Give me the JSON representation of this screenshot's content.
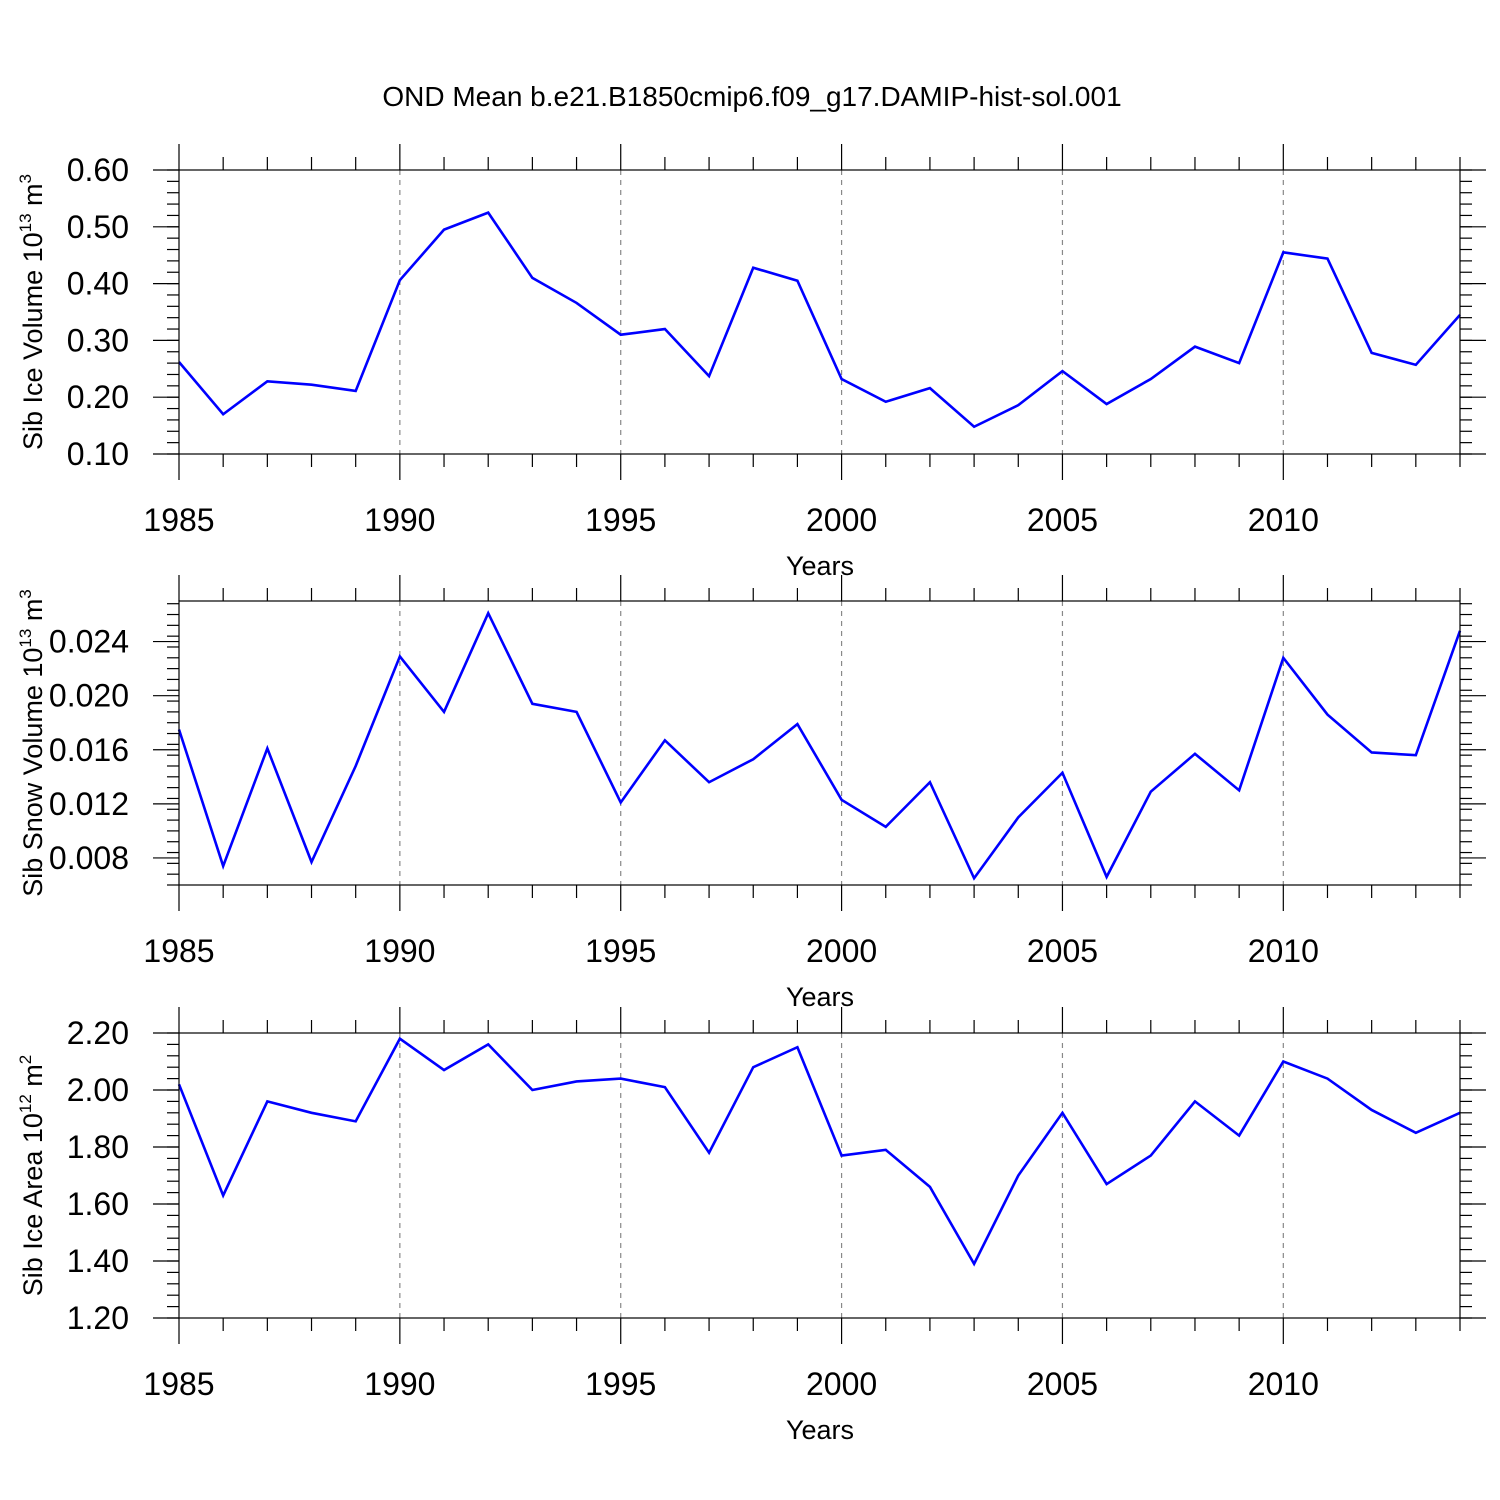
{
  "title": "OND Mean b.e21.B1850cmip6.f09_g17.DAMIP-hist-sol.001",
  "chart_data": [
    {
      "type": "line",
      "ylabel": {
        "main": "Sib Ice Volume 10",
        "sup": "13",
        "unit": " m",
        "unit_sup": "3"
      },
      "xlabel": "Years",
      "xlim": [
        1985,
        2014
      ],
      "ylim": [
        0.1,
        0.6
      ],
      "yticks": [
        0.1,
        0.2,
        0.3,
        0.4,
        0.5,
        0.6
      ],
      "ytick_labels": [
        "0.10",
        "0.20",
        "0.30",
        "0.40",
        "0.50",
        "0.60"
      ],
      "yminor_step": 0.02,
      "xticks": [
        1985,
        1990,
        1995,
        2000,
        2005,
        2010
      ],
      "xtick_labels": [
        "1985",
        "1990",
        "1995",
        "2000",
        "2005",
        "2010"
      ],
      "color": "#0000ff",
      "x": [
        1985,
        1986,
        1987,
        1988,
        1989,
        1990,
        1991,
        1992,
        1993,
        1994,
        1995,
        1996,
        1997,
        1998,
        1999,
        2000,
        2001,
        2002,
        2003,
        2004,
        2005,
        2006,
        2007,
        2008,
        2009,
        2010,
        2011,
        2012,
        2013,
        2014
      ],
      "y": [
        0.262,
        0.17,
        0.228,
        0.222,
        0.211,
        0.406,
        0.495,
        0.525,
        0.41,
        0.366,
        0.31,
        0.32,
        0.237,
        0.428,
        0.405,
        0.232,
        0.192,
        0.216,
        0.148,
        0.186,
        0.246,
        0.188,
        0.232,
        0.289,
        0.26,
        0.455,
        0.444,
        0.278,
        0.257,
        0.345
      ]
    },
    {
      "type": "line",
      "ylabel": {
        "main": "Sib Snow Volume 10",
        "sup": "13",
        "unit": " m",
        "unit_sup": "3"
      },
      "xlabel": "Years",
      "xlim": [
        1985,
        2014
      ],
      "ylim": [
        0.006,
        0.027
      ],
      "yticks": [
        0.008,
        0.012,
        0.016,
        0.02,
        0.024
      ],
      "ytick_labels": [
        "0.008",
        "0.012",
        "0.016",
        "0.020",
        "0.024"
      ],
      "yminor_step": 0.0008,
      "xticks": [
        1985,
        1990,
        1995,
        2000,
        2005,
        2010
      ],
      "xtick_labels": [
        "1985",
        "1990",
        "1995",
        "2000",
        "2005",
        "2010"
      ],
      "color": "#0000ff",
      "x": [
        1985,
        1986,
        1987,
        1988,
        1989,
        1990,
        1991,
        1992,
        1993,
        1994,
        1995,
        1996,
        1997,
        1998,
        1999,
        2000,
        2001,
        2002,
        2003,
        2004,
        2005,
        2006,
        2007,
        2008,
        2009,
        2010,
        2011,
        2012,
        2013,
        2014
      ],
      "y": [
        0.0175,
        0.0074,
        0.0161,
        0.0077,
        0.0148,
        0.0229,
        0.0188,
        0.0261,
        0.0194,
        0.0188,
        0.0121,
        0.0167,
        0.0136,
        0.0153,
        0.0179,
        0.0123,
        0.0103,
        0.0136,
        0.0065,
        0.011,
        0.0143,
        0.0066,
        0.0129,
        0.0157,
        0.013,
        0.0228,
        0.0186,
        0.0158,
        0.0156,
        0.0248
      ]
    },
    {
      "type": "line",
      "ylabel": {
        "main": "Sib Ice Area 10",
        "sup": "12",
        "unit": " m",
        "unit_sup": "2"
      },
      "xlabel": "Years",
      "xlim": [
        1985,
        2014
      ],
      "ylim": [
        1.2,
        2.2
      ],
      "yticks": [
        1.2,
        1.4,
        1.6,
        1.8,
        2.0,
        2.2
      ],
      "ytick_labels": [
        "1.20",
        "1.40",
        "1.60",
        "1.80",
        "2.00",
        "2.20"
      ],
      "yminor_step": 0.04,
      "xticks": [
        1985,
        1990,
        1995,
        2000,
        2005,
        2010
      ],
      "xtick_labels": [
        "1985",
        "1990",
        "1995",
        "2000",
        "2005",
        "2010"
      ],
      "color": "#0000ff",
      "x": [
        1985,
        1986,
        1987,
        1988,
        1989,
        1990,
        1991,
        1992,
        1993,
        1994,
        1995,
        1996,
        1997,
        1998,
        1999,
        2000,
        2001,
        2002,
        2003,
        2004,
        2005,
        2006,
        2007,
        2008,
        2009,
        2010,
        2011,
        2012,
        2013,
        2014
      ],
      "y": [
        2.02,
        1.63,
        1.96,
        1.92,
        1.89,
        2.18,
        2.07,
        2.16,
        2.0,
        2.03,
        2.04,
        2.01,
        1.78,
        2.08,
        2.15,
        1.77,
        1.79,
        1.66,
        1.39,
        1.7,
        1.92,
        1.67,
        1.77,
        1.96,
        1.84,
        2.1,
        2.04,
        1.93,
        1.85,
        1.92
      ]
    }
  ]
}
